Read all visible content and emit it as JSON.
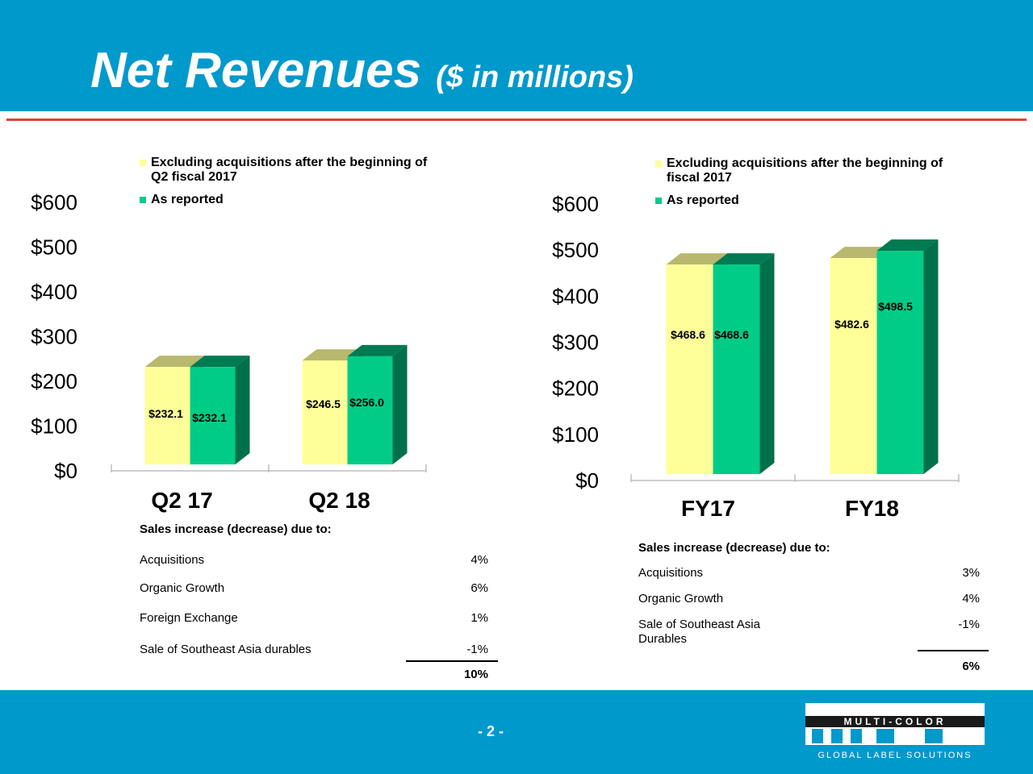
{
  "slide": {
    "title_main": "Net Revenues",
    "title_sub": "($ in millions)",
    "page_number": "- 2 -"
  },
  "colors": {
    "header": "#0099cc",
    "excluding": "#ffff99",
    "reported": "#00cc88",
    "rule": "#e0433a"
  },
  "chart_data": [
    {
      "type": "bar",
      "categories": [
        "Q2 17",
        "Q2 18"
      ],
      "series": [
        {
          "name": "Excluding acquisitions after the beginning of Q2 fiscal 2017",
          "values": [
            232.1,
            246.5
          ],
          "labels": [
            "$232.1",
            "$246.5"
          ]
        },
        {
          "name": "As reported",
          "values": [
            232.1,
            256.0
          ],
          "labels": [
            "$232.1",
            "$256.0"
          ]
        }
      ],
      "legend_lines": [
        [
          "Excluding acquisitions after the beginning of",
          "Q2 fiscal 2017"
        ],
        [
          "As reported"
        ]
      ],
      "yticks": [
        "$0",
        "$100",
        "$200",
        "$300",
        "$400",
        "$500",
        "$600"
      ],
      "ylim": [
        0,
        600
      ],
      "legend": "top-left"
    },
    {
      "type": "bar",
      "categories": [
        "FY17",
        "FY18"
      ],
      "series": [
        {
          "name": "Excluding acquisitions after the beginning of fiscal 2017",
          "values": [
            468.6,
            482.6
          ],
          "labels": [
            "$468.6",
            "$482.6"
          ]
        },
        {
          "name": "As reported",
          "values": [
            468.6,
            498.5
          ],
          "labels": [
            "$468.6",
            "$498.5"
          ]
        }
      ],
      "legend_lines": [
        [
          "Excluding acquisitions after the beginning of",
          "fiscal 2017"
        ],
        [
          "As reported"
        ]
      ],
      "yticks": [
        "$0",
        "$100",
        "$200",
        "$300",
        "$400",
        "$500",
        "$600"
      ],
      "ylim": [
        0,
        600
      ],
      "legend": "top-left"
    }
  ],
  "tables": [
    {
      "header": "Sales increase (decrease) due to:",
      "rows": [
        {
          "label": "Acquisitions",
          "value": "4%"
        },
        {
          "label": "Organic Growth",
          "value": "6%"
        },
        {
          "label": "Foreign Exchange",
          "value": "1%"
        },
        {
          "label": "Sale of Southeast Asia durables",
          "value": "-1%"
        }
      ],
      "total": "10%"
    },
    {
      "header": "Sales increase (decrease) due to:",
      "rows": [
        {
          "label": "Acquisitions",
          "value": "3%"
        },
        {
          "label": "Organic Growth",
          "value": "4%"
        },
        {
          "label": "Sale of Southeast Asia Durables",
          "value": "-1%"
        }
      ],
      "total": "6%"
    }
  ],
  "logo": {
    "letters": "MCC",
    "band": "MULTI-COLOR",
    "tagline": "GLOBAL LABEL SOLUTIONS"
  }
}
